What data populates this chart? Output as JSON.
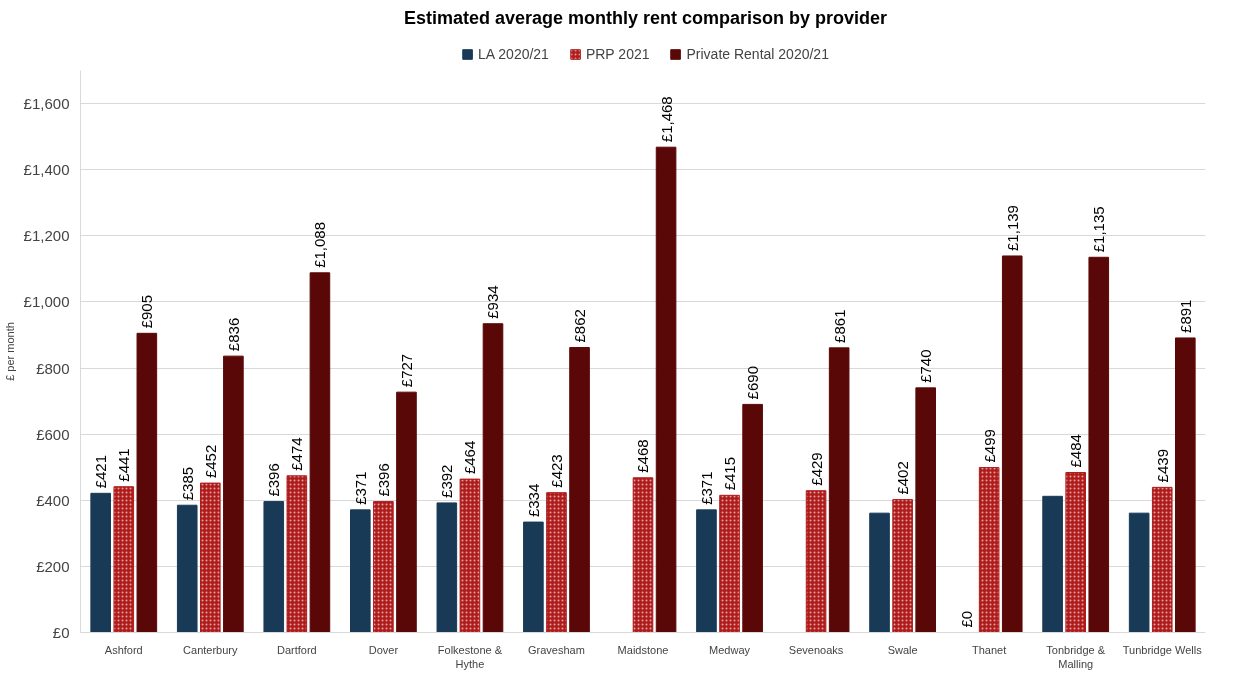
{
  "chart_data": {
    "type": "bar",
    "title": "Estimated average monthly rent comparison by provider",
    "ylabel": "£ per month",
    "categories": [
      "Ashford",
      "Canterbury",
      "Dartford",
      "Dover",
      "Folkestone & Hythe",
      "Gravesham",
      "Maidstone",
      "Medway",
      "Sevenoaks",
      "Swale",
      "Thanet",
      "Tonbridge & Malling",
      "Tunbridge Wells"
    ],
    "series": [
      {
        "name": "LA 2020/21",
        "color": "#193a56",
        "values": [
          421,
          385,
          396,
          371,
          392,
          334,
          null,
          371,
          null,
          361,
          0,
          412,
          361
        ],
        "value_labels": [
          "£421",
          "£385",
          "£396",
          "£371",
          "£392",
          "£334",
          null,
          "£371",
          null,
          null,
          "£0",
          null,
          null
        ]
      },
      {
        "name": "PRP 2021",
        "color": "#b01c1c",
        "values": [
          441,
          452,
          474,
          396,
          464,
          423,
          468,
          415,
          429,
          402,
          499,
          484,
          439
        ],
        "value_labels": [
          "£441",
          "£452",
          "£474",
          "£396",
          "£464",
          "£423",
          "£468",
          "£415",
          "£429",
          "£402",
          "£499",
          "£484",
          "£439"
        ]
      },
      {
        "name": "Private Rental 2020/21",
        "color": "#5a0807",
        "values": [
          905,
          836,
          1088,
          727,
          934,
          862,
          1468,
          690,
          861,
          740,
          1139,
          1135,
          891
        ],
        "value_labels": [
          "£905",
          "£836",
          "£1,088",
          "£727",
          "£934",
          "£862",
          "£1,468",
          "£690",
          "£861",
          "£740",
          "£1,139",
          "£1,135",
          "£891"
        ]
      }
    ],
    "ylim": [
      0,
      1700
    ],
    "yticks": [
      {
        "value": 0,
        "label": "£0"
      },
      {
        "value": 200,
        "label": "£200"
      },
      {
        "value": 400,
        "label": "£400"
      },
      {
        "value": 600,
        "label": "£600"
      },
      {
        "value": 800,
        "label": "£800"
      },
      {
        "value": 1000,
        "label": "£1,000"
      },
      {
        "value": 1200,
        "label": "£1,200"
      },
      {
        "value": 1400,
        "label": "£1,400"
      },
      {
        "value": 1600,
        "label": "£1,600"
      }
    ],
    "grid": "y",
    "legend": "top"
  }
}
